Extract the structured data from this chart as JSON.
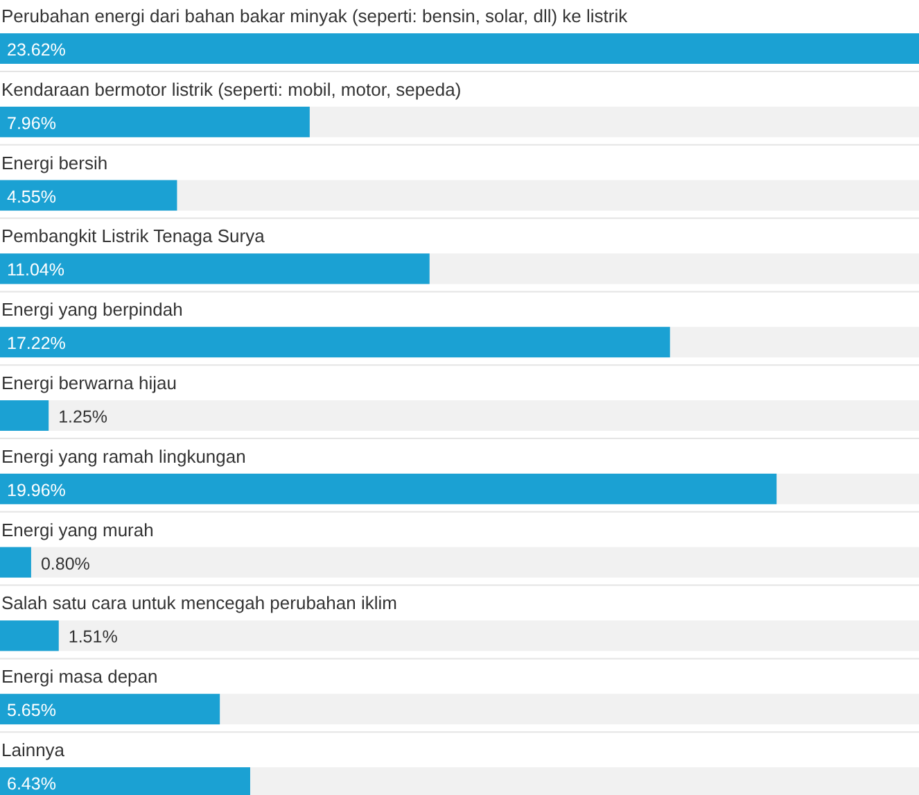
{
  "chart_data": {
    "type": "bar",
    "orientation": "horizontal",
    "color": "#1ba1d3",
    "value_labels": [
      "23.62%",
      "7.96%",
      "4.55%",
      "11.04%",
      "17.22%",
      "1.25%",
      "19.96%",
      "0.80%",
      "1.51%",
      "5.65%",
      "6.43%"
    ],
    "categories": [
      "Perubahan energi dari bahan bakar minyak (seperti: bensin, solar, dll) ke listrik",
      "Kendaraan bermotor listrik (seperti: mobil, motor, sepeda)",
      "Energi bersih",
      "Pembangkit Listrik Tenaga Surya",
      "Energi yang berpindah",
      "Energi berwarna hijau",
      "Energi yang ramah lingkungan",
      "Energi yang murah",
      "Salah satu cara untuk mencegah perubahan iklim",
      "Energi masa depan",
      "Lainnya"
    ],
    "values": [
      23.62,
      7.96,
      4.55,
      11.04,
      17.22,
      1.25,
      19.96,
      0.8,
      1.51,
      5.65,
      6.43
    ]
  }
}
